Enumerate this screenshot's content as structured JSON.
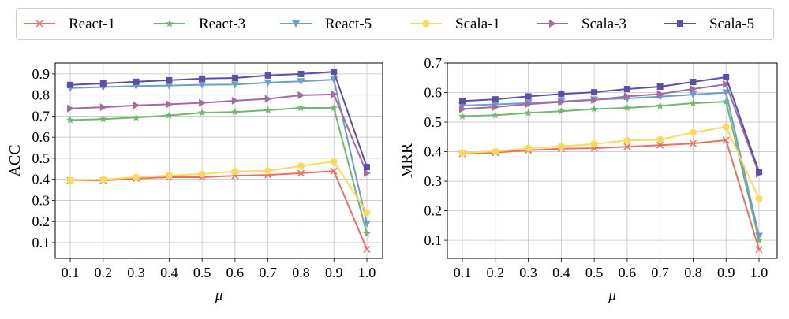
{
  "legend": {
    "placement": "top-center",
    "entries": [
      {
        "name": "React-1",
        "color": "#ef6f5e",
        "marker": "x"
      },
      {
        "name": "React-3",
        "color": "#72b66f",
        "marker": "star"
      },
      {
        "name": "React-5",
        "color": "#6a9fc9",
        "marker": "triangle-down"
      },
      {
        "name": "Scala-1",
        "color": "#ffd95c",
        "marker": "circle"
      },
      {
        "name": "Scala-3",
        "color": "#a46aa6",
        "marker": "triangle-right"
      },
      {
        "name": "Scala-5",
        "color": "#5d4fa8",
        "marker": "square"
      }
    ]
  },
  "chart_data": [
    {
      "type": "line",
      "xlabel": "μ",
      "ylabel": "ACC",
      "grid": true,
      "x": [
        0.1,
        0.2,
        0.3,
        0.4,
        0.5,
        0.6,
        0.7,
        0.8,
        0.9,
        1.0
      ],
      "x_tick_labels": [
        "0.1",
        "0.2",
        "0.3",
        "0.4",
        "0.5",
        "0.6",
        "0.7",
        "0.8",
        "0.9",
        "1.0"
      ],
      "y_ticks": [
        0.1,
        0.2,
        0.3,
        0.4,
        0.5,
        0.6,
        0.7,
        0.8,
        0.9
      ],
      "y_tick_labels": [
        "0.1",
        "0.2",
        "0.3",
        "0.4",
        "0.5",
        "0.6",
        "0.7",
        "0.8",
        "0.9"
      ],
      "ylim": [
        0.025,
        0.952
      ],
      "series": [
        {
          "name": "React-1",
          "values": [
            0.395,
            0.394,
            0.404,
            0.41,
            0.41,
            0.417,
            0.421,
            0.429,
            0.439,
            0.068
          ]
        },
        {
          "name": "React-3",
          "values": [
            0.681,
            0.686,
            0.693,
            0.703,
            0.716,
            0.719,
            0.728,
            0.739,
            0.739,
            0.142
          ]
        },
        {
          "name": "React-5",
          "values": [
            0.833,
            0.838,
            0.843,
            0.845,
            0.849,
            0.85,
            0.859,
            0.865,
            0.873,
            0.19
          ]
        },
        {
          "name": "Scala-1",
          "values": [
            0.395,
            0.399,
            0.41,
            0.418,
            0.425,
            0.438,
            0.44,
            0.463,
            0.485,
            0.242
          ]
        },
        {
          "name": "Scala-3",
          "values": [
            0.736,
            0.742,
            0.751,
            0.756,
            0.763,
            0.773,
            0.782,
            0.799,
            0.803,
            0.429
          ]
        },
        {
          "name": "Scala-5",
          "values": [
            0.848,
            0.855,
            0.863,
            0.87,
            0.878,
            0.881,
            0.893,
            0.9,
            0.91,
            0.458
          ]
        }
      ]
    },
    {
      "type": "line",
      "xlabel": "μ",
      "ylabel": "MRR",
      "grid": true,
      "x": [
        0.1,
        0.2,
        0.3,
        0.4,
        0.5,
        0.6,
        0.7,
        0.8,
        0.9,
        1.0
      ],
      "x_tick_labels": [
        "0.1",
        "0.2",
        "0.3",
        "0.4",
        "0.5",
        "0.6",
        "0.7",
        "0.8",
        "0.9",
        "1.0"
      ],
      "y_ticks": [
        0.1,
        0.2,
        0.3,
        0.4,
        0.5,
        0.6,
        0.7
      ],
      "y_tick_labels": [
        "0.1",
        "0.2",
        "0.3",
        "0.4",
        "0.5",
        "0.6",
        "0.7"
      ],
      "ylim": [
        0.039,
        0.7
      ],
      "series": [
        {
          "name": "React-1",
          "values": [
            0.393,
            0.397,
            0.405,
            0.41,
            0.412,
            0.417,
            0.422,
            0.428,
            0.439,
            0.069
          ]
        },
        {
          "name": "React-3",
          "values": [
            0.52,
            0.523,
            0.531,
            0.537,
            0.544,
            0.548,
            0.555,
            0.564,
            0.569,
            0.1
          ]
        },
        {
          "name": "React-5",
          "values": [
            0.556,
            0.56,
            0.565,
            0.57,
            0.576,
            0.58,
            0.586,
            0.593,
            0.6,
            0.115
          ]
        },
        {
          "name": "Scala-1",
          "values": [
            0.396,
            0.401,
            0.412,
            0.418,
            0.426,
            0.438,
            0.441,
            0.465,
            0.484,
            0.241
          ]
        },
        {
          "name": "Scala-3",
          "values": [
            0.544,
            0.551,
            0.561,
            0.568,
            0.575,
            0.587,
            0.595,
            0.612,
            0.628,
            0.325
          ]
        },
        {
          "name": "Scala-5",
          "values": [
            0.571,
            0.577,
            0.587,
            0.595,
            0.601,
            0.612,
            0.62,
            0.636,
            0.652,
            0.332
          ]
        }
      ]
    }
  ]
}
